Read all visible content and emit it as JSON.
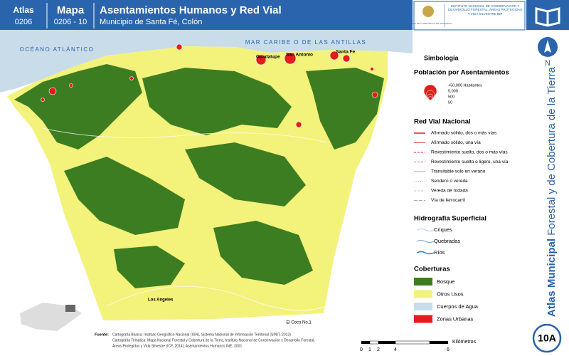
{
  "header": {
    "atlas_label": "Atlas",
    "atlas_code": "0206",
    "map_label": "Mapa",
    "map_code": "0206 - 10",
    "title": "Asentamientos Humanos y Red Vial",
    "subtitle": "Municipio de Santa Fé, Colón"
  },
  "logos": {
    "government": "GOBIERNO DE LA REPÚBLICA DE HONDURAS",
    "institute": "INSTITUTO NACIONAL DE CONSERVACIÓN Y DESARROLLO FORESTAL, ÁREAS PROTEGIDAS Y VIDA SILVESTRE",
    "institute_short": "ICF"
  },
  "map": {
    "sea": "MAR CARIBE O DE LAS ANTILLAS",
    "ocean": "OCÉANO ATLÁNTICO",
    "places": [
      "Guadalupe",
      "San Antonio",
      "Santa Fe",
      "Los Angeles",
      "El Coco No.1"
    ]
  },
  "legend": {
    "title": "Simbología",
    "population_title": "Población por Asentamientos",
    "population": [
      "+50,000 Habitantes",
      "5,000",
      "500",
      "50"
    ],
    "roads_title": "Red Vial Nacional",
    "roads": [
      "Afirmado sólido, dos o más vías",
      "Afirmado sólido, una vía",
      "Revestimiento suelto, dos o más vías",
      "Revestimiento suelto o ligero, una vía",
      "Transitable solo en verano",
      "Sendero o vereda",
      "Vereda de rodada",
      "Vía de ferrocarril"
    ],
    "hydro_title": "Hidrografía Superficial",
    "hydro": [
      "Criques",
      "Quebradas",
      "Ríos"
    ],
    "cover_title": "Coberturas",
    "cover": [
      "Bosque",
      "Otros Usos",
      "Cuerpos de Agua",
      "Zonas Urbanas"
    ]
  },
  "side": {
    "north": "N",
    "title_bold": "Atlas Municipal",
    "title_rest": " Forestal y de Cobertura de la Tierra",
    "sheet": "10A"
  },
  "scale": {
    "labels": [
      "0",
      "1",
      "2",
      "4",
      "6"
    ],
    "unit": "Kilómetros"
  },
  "source": {
    "label": "Fuente:",
    "lines": [
      "Cartografía Básica: Instituto Geográfico Nacional (IGN), Sistema Nacional de Información Territorial (SINIT, 2013)",
      "Cartografía Temática: Mapa Nacional Forestal y Cobertura de la Tierra, Instituto Nacional de Conservación y Desarrollo Forestal,",
      "Áreas Protegidas y Vida Silvestre (ICF, 2014); Asentamientos Humanos INE, 2001"
    ]
  }
}
